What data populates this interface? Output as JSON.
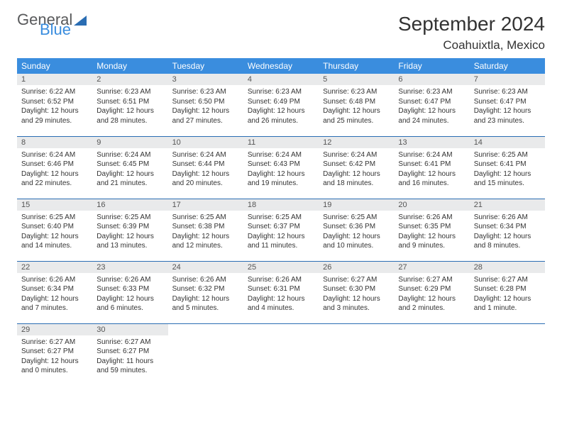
{
  "logo": {
    "text1": "General",
    "text2": "Blue"
  },
  "title": "September 2024",
  "location": "Coahuixtla, Mexico",
  "colors": {
    "header_bg": "#3a8dde",
    "header_text": "#ffffff",
    "row_divider": "#2a6db3",
    "daynum_bg": "#e9eaeb",
    "body_text": "#333333"
  },
  "weekdays": [
    "Sunday",
    "Monday",
    "Tuesday",
    "Wednesday",
    "Thursday",
    "Friday",
    "Saturday"
  ],
  "weeks": [
    [
      {
        "n": "1",
        "sr": "6:22 AM",
        "ss": "6:52 PM",
        "dl": "12 hours and 29 minutes."
      },
      {
        "n": "2",
        "sr": "6:23 AM",
        "ss": "6:51 PM",
        "dl": "12 hours and 28 minutes."
      },
      {
        "n": "3",
        "sr": "6:23 AM",
        "ss": "6:50 PM",
        "dl": "12 hours and 27 minutes."
      },
      {
        "n": "4",
        "sr": "6:23 AM",
        "ss": "6:49 PM",
        "dl": "12 hours and 26 minutes."
      },
      {
        "n": "5",
        "sr": "6:23 AM",
        "ss": "6:48 PM",
        "dl": "12 hours and 25 minutes."
      },
      {
        "n": "6",
        "sr": "6:23 AM",
        "ss": "6:47 PM",
        "dl": "12 hours and 24 minutes."
      },
      {
        "n": "7",
        "sr": "6:23 AM",
        "ss": "6:47 PM",
        "dl": "12 hours and 23 minutes."
      }
    ],
    [
      {
        "n": "8",
        "sr": "6:24 AM",
        "ss": "6:46 PM",
        "dl": "12 hours and 22 minutes."
      },
      {
        "n": "9",
        "sr": "6:24 AM",
        "ss": "6:45 PM",
        "dl": "12 hours and 21 minutes."
      },
      {
        "n": "10",
        "sr": "6:24 AM",
        "ss": "6:44 PM",
        "dl": "12 hours and 20 minutes."
      },
      {
        "n": "11",
        "sr": "6:24 AM",
        "ss": "6:43 PM",
        "dl": "12 hours and 19 minutes."
      },
      {
        "n": "12",
        "sr": "6:24 AM",
        "ss": "6:42 PM",
        "dl": "12 hours and 18 minutes."
      },
      {
        "n": "13",
        "sr": "6:24 AM",
        "ss": "6:41 PM",
        "dl": "12 hours and 16 minutes."
      },
      {
        "n": "14",
        "sr": "6:25 AM",
        "ss": "6:41 PM",
        "dl": "12 hours and 15 minutes."
      }
    ],
    [
      {
        "n": "15",
        "sr": "6:25 AM",
        "ss": "6:40 PM",
        "dl": "12 hours and 14 minutes."
      },
      {
        "n": "16",
        "sr": "6:25 AM",
        "ss": "6:39 PM",
        "dl": "12 hours and 13 minutes."
      },
      {
        "n": "17",
        "sr": "6:25 AM",
        "ss": "6:38 PM",
        "dl": "12 hours and 12 minutes."
      },
      {
        "n": "18",
        "sr": "6:25 AM",
        "ss": "6:37 PM",
        "dl": "12 hours and 11 minutes."
      },
      {
        "n": "19",
        "sr": "6:25 AM",
        "ss": "6:36 PM",
        "dl": "12 hours and 10 minutes."
      },
      {
        "n": "20",
        "sr": "6:26 AM",
        "ss": "6:35 PM",
        "dl": "12 hours and 9 minutes."
      },
      {
        "n": "21",
        "sr": "6:26 AM",
        "ss": "6:34 PM",
        "dl": "12 hours and 8 minutes."
      }
    ],
    [
      {
        "n": "22",
        "sr": "6:26 AM",
        "ss": "6:34 PM",
        "dl": "12 hours and 7 minutes."
      },
      {
        "n": "23",
        "sr": "6:26 AM",
        "ss": "6:33 PM",
        "dl": "12 hours and 6 minutes."
      },
      {
        "n": "24",
        "sr": "6:26 AM",
        "ss": "6:32 PM",
        "dl": "12 hours and 5 minutes."
      },
      {
        "n": "25",
        "sr": "6:26 AM",
        "ss": "6:31 PM",
        "dl": "12 hours and 4 minutes."
      },
      {
        "n": "26",
        "sr": "6:27 AM",
        "ss": "6:30 PM",
        "dl": "12 hours and 3 minutes."
      },
      {
        "n": "27",
        "sr": "6:27 AM",
        "ss": "6:29 PM",
        "dl": "12 hours and 2 minutes."
      },
      {
        "n": "28",
        "sr": "6:27 AM",
        "ss": "6:28 PM",
        "dl": "12 hours and 1 minute."
      }
    ],
    [
      {
        "n": "29",
        "sr": "6:27 AM",
        "ss": "6:27 PM",
        "dl": "12 hours and 0 minutes."
      },
      {
        "n": "30",
        "sr": "6:27 AM",
        "ss": "6:27 PM",
        "dl": "11 hours and 59 minutes."
      },
      null,
      null,
      null,
      null,
      null
    ]
  ],
  "labels": {
    "sunrise": "Sunrise:",
    "sunset": "Sunset:",
    "daylight": "Daylight:"
  }
}
